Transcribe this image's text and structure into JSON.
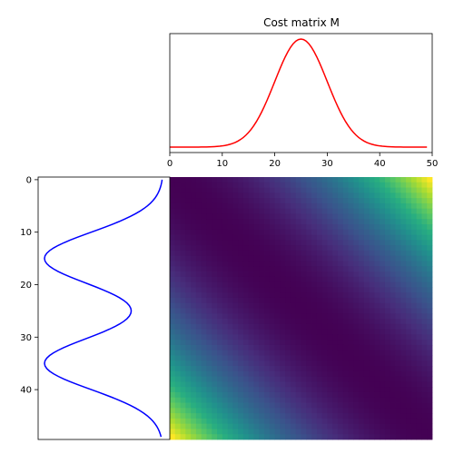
{
  "chart_data": [
    {
      "id": "top",
      "type": "line",
      "title": "Cost matrix M",
      "xlim": [
        0,
        50
      ],
      "xticks": [
        0,
        10,
        20,
        30,
        40,
        50
      ],
      "yticks_visible": false,
      "series": [
        {
          "color": "#ff0000",
          "function": "gaussian",
          "mean": 25,
          "std": 5,
          "x_start": 0,
          "x_end": 49
        }
      ]
    },
    {
      "id": "left",
      "type": "line",
      "orientation": "vertical",
      "ylim": [
        49.5,
        -0.5
      ],
      "yticks": [
        0,
        10,
        20,
        30,
        40
      ],
      "xticks_visible": false,
      "series": [
        {
          "color": "#0000ff",
          "function": "gaussian_mixture",
          "components": [
            {
              "mean": 15,
              "std": 5,
              "weight": 0.5
            },
            {
              "mean": 35,
              "std": 5,
              "weight": 0.5
            }
          ],
          "x_start": 0,
          "x_end": 49,
          "inverted": true
        }
      ]
    },
    {
      "id": "matrix",
      "type": "heatmap",
      "rows": 50,
      "cols": 50,
      "cell_formula": "(i - j)^2 normalized",
      "colormap": "viridis",
      "vmin": 0,
      "vmax": 2401
    }
  ]
}
